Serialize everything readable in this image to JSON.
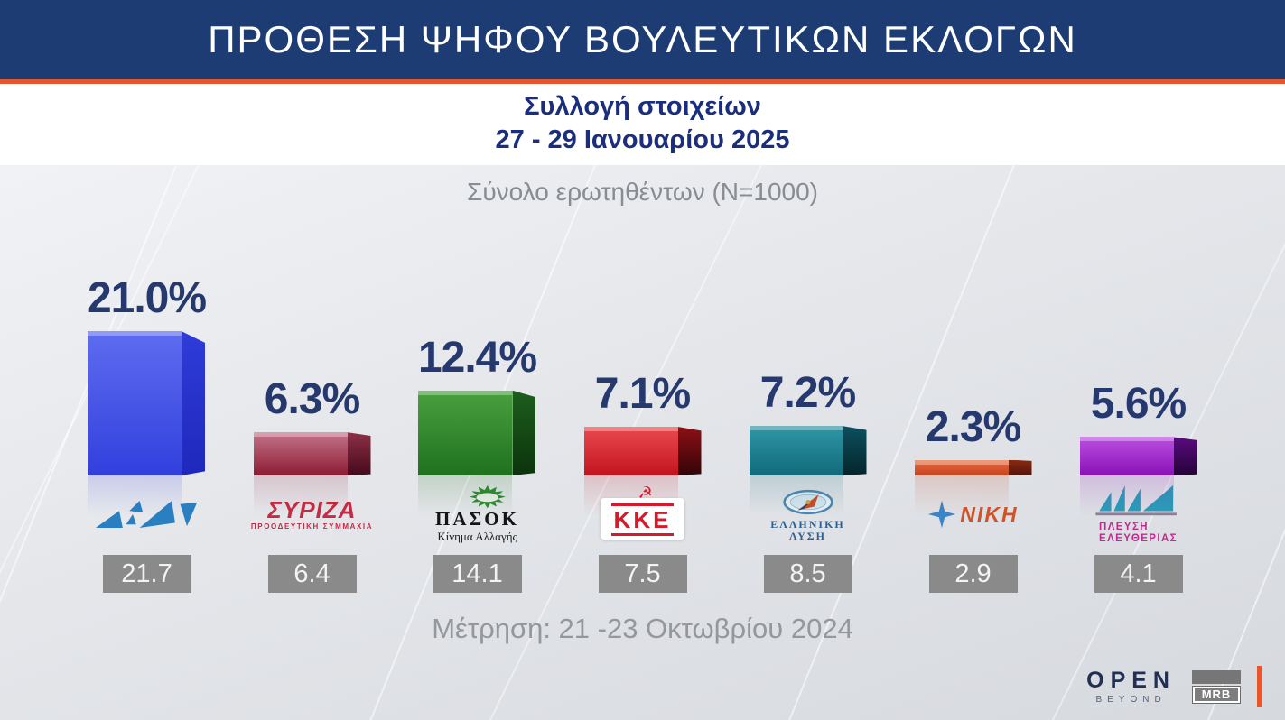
{
  "header": {
    "title": "ΠΡΟΘΕΣΗ ΨΗΦΟΥ ΒΟΥΛΕΥΤΙΚΩΝ ΕΚΛΟΓΩΝ"
  },
  "subtitle": {
    "line1": "Συλλογή στοιχείων",
    "line2": "27 - 29 Ιανουαρίου 2025"
  },
  "sample_note": "Σύνολο ερωτηθέντων (N=1000)",
  "measure_note": "Μέτρηση: 21 -23 Οκτωβρίου 2024",
  "footer": {
    "open_label": "OPEN",
    "open_sub": "BEYOND",
    "mrb_label": "MRB"
  },
  "colors": {
    "header_bg": "#1d3c74",
    "accent_orange": "#e2572f",
    "percent_text": "#26396f",
    "subtitle_text": "#1b2d7d",
    "note_text": "#94979c",
    "prev_box_bg": "#8a8a8b"
  },
  "chart_data": {
    "type": "bar",
    "title": "ΠΡΟΘΕΣΗ ΨΗΦΟΥ ΒΟΥΛΕΥΤΙΚΩΝ ΕΚΛΟΓΩΝ",
    "units": "%",
    "categories": [
      "ΝΔ",
      "ΣΥΡΙΖΑ ΠΡΟΟΔΕΥΤΙΚΗ ΣΥΜΜΑΧΙΑ",
      "ΠΑΣΟΚ Κίνημα Αλλαγής",
      "ΚΚΕ",
      "ΕΛΛΗΝΙΚΗ ΛΥΣΗ",
      "ΝΙΚΗ",
      "ΠΛΕΥΣΗ ΕΛΕΥΘΕΡΙΑΣ"
    ],
    "series": [
      {
        "name": "Συλλογή στοιχείων 27 - 29 Ιανουαρίου 2025",
        "values": [
          21.0,
          6.3,
          12.4,
          7.1,
          7.2,
          2.3,
          5.6
        ]
      },
      {
        "name": "Μέτρηση: 21 -23 Οκτωβρίου 2024",
        "values": [
          21.7,
          6.4,
          14.1,
          7.5,
          8.5,
          2.9,
          4.1
        ]
      }
    ],
    "bar_colors": [
      "#3a49e3",
      "#8c1b33",
      "#1f711f",
      "#c3131f",
      "#116a79",
      "#c6441f",
      "#8812b6"
    ],
    "legend_position": "none",
    "grid": false,
    "value_labels": "above bars (current) and in gray boxes (previous)"
  },
  "parties": [
    {
      "name": "ΝΔ",
      "pct": "21.0%",
      "value": 21.0,
      "prev": "21.7",
      "colors": {
        "face_top": "#5e6cf0",
        "face_bottom": "#3140dd",
        "side_top": "#2f3cd8",
        "side_bottom": "#1f28bc"
      }
    },
    {
      "name": "ΣΥΡΙΖΑ",
      "pct": "6.3%",
      "value": 6.3,
      "prev": "6.4",
      "logo_text": "ΣΥΡΙΖΑ",
      "logo_sub": "ΠΡΟΟΔΕΥΤΙΚΗ ΣΥΜΜΑΧΙΑ",
      "colors": {
        "face_top": "#c4758b",
        "face_bottom": "#8c1b33",
        "side_top": "#8e3046",
        "side_bottom": "#45091b"
      }
    },
    {
      "name": "ΠΑΣΟΚ",
      "pct": "12.4%",
      "value": 12.4,
      "prev": "14.1",
      "logo_text": "ΠΑΣΟΚ",
      "logo_sub": "Κίνημα Αλλαγής",
      "colors": {
        "face_top": "#4aa03e",
        "face_bottom": "#1f711f",
        "side_top": "#1d5e1d",
        "side_bottom": "#0c330c"
      }
    },
    {
      "name": "ΚΚΕ",
      "pct": "7.1%",
      "value": 7.1,
      "prev": "7.5",
      "logo_text": "ΚΚΕ",
      "logo_icon": "☭",
      "colors": {
        "face_top": "#ea4a50",
        "face_bottom": "#c3131f",
        "side_top": "#8e1016",
        "side_bottom": "#310408"
      }
    },
    {
      "name": "ΕΛΛΗΝΙΚΗ ΛΥΣΗ",
      "pct": "7.2%",
      "value": 7.2,
      "prev": "8.5",
      "logo_line1": "ΕΛΛΗΝΙΚΗ",
      "logo_line2": "ΛΥΣΗ",
      "colors": {
        "face_top": "#2f97a8",
        "face_bottom": "#116a79",
        "side_top": "#0d505e",
        "side_bottom": "#04252c"
      }
    },
    {
      "name": "ΝΙΚΗ",
      "pct": "2.3%",
      "value": 2.3,
      "prev": "2.9",
      "logo_text": "ΝΙΚΗ",
      "colors": {
        "face_top": "#e86a3e",
        "face_bottom": "#c6441f",
        "side_top": "#8a2a12",
        "side_bottom": "#541408"
      }
    },
    {
      "name": "ΠΛΕΥΣΗ ΕΛΕΥΘΕΡΙΑΣ",
      "pct": "5.6%",
      "value": 5.6,
      "prev": "4.1",
      "logo_line1": "ΠΛΕΥΣΗ",
      "logo_line2": "ΕΛΕΥΘΕΡΙΑΣ",
      "colors": {
        "face_top": "#bc4fe3",
        "face_bottom": "#8812b6",
        "side_top": "#5a0b80",
        "side_bottom": "#240336"
      }
    }
  ]
}
